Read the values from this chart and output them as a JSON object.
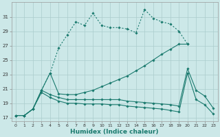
{
  "xlabel": "Humidex (Indice chaleur)",
  "x": [
    0,
    1,
    2,
    3,
    4,
    5,
    6,
    7,
    8,
    9,
    10,
    11,
    12,
    13,
    14,
    15,
    16,
    17,
    18,
    19,
    20,
    21,
    22,
    23
  ],
  "line1_x": [
    0,
    1,
    2,
    3,
    4,
    5,
    6,
    7,
    8,
    9,
    10,
    11,
    12,
    13,
    14,
    15,
    16,
    17,
    18,
    19,
    20
  ],
  "line1_y": [
    17.3,
    17.3,
    18.2,
    20.8,
    23.2,
    26.7,
    28.5,
    30.3,
    29.8,
    31.5,
    29.8,
    29.5,
    29.5,
    29.3,
    28.8,
    32.0,
    30.8,
    30.3,
    30.0,
    29.0,
    27.2
  ],
  "line2_x": [
    0,
    1,
    2,
    3,
    4,
    5,
    6,
    7,
    8,
    9,
    10,
    11,
    12,
    13,
    14,
    15,
    16,
    17,
    18,
    19,
    20
  ],
  "line2_y": [
    17.3,
    17.3,
    18.2,
    20.8,
    23.2,
    20.3,
    20.2,
    20.2,
    20.5,
    20.8,
    21.3,
    21.8,
    22.3,
    22.8,
    23.5,
    24.2,
    25.0,
    25.8,
    26.5,
    27.2,
    27.2
  ],
  "line3_x": [
    0,
    1,
    2,
    3,
    4,
    5,
    6,
    7,
    8,
    9,
    10,
    11,
    12,
    13,
    14,
    15,
    16,
    17,
    18,
    19,
    20,
    21,
    22,
    23
  ],
  "line3_y": [
    17.3,
    17.3,
    18.2,
    20.8,
    20.2,
    19.8,
    19.5,
    19.5,
    19.5,
    19.5,
    19.5,
    19.5,
    19.5,
    19.3,
    19.2,
    19.1,
    19.0,
    18.9,
    18.8,
    18.6,
    23.8,
    20.8,
    20.0,
    18.3
  ],
  "line4_x": [
    0,
    1,
    2,
    3,
    4,
    5,
    6,
    7,
    8,
    9,
    10,
    11,
    12,
    13,
    14,
    15,
    16,
    17,
    18,
    19,
    20,
    21,
    22,
    23
  ],
  "line4_y": [
    17.3,
    17.3,
    18.2,
    20.5,
    19.8,
    19.3,
    19.0,
    19.0,
    18.9,
    18.9,
    18.9,
    18.8,
    18.8,
    18.6,
    18.5,
    18.4,
    18.3,
    18.2,
    18.0,
    17.8,
    23.2,
    19.5,
    18.8,
    17.5
  ],
  "color": "#1a7a6e",
  "bg_color": "#cce8e8",
  "grid_color": "#aacccc",
  "ylim": [
    16.5,
    33.0
  ],
  "xlim": [
    -0.5,
    23.5
  ],
  "yticks": [
    17,
    19,
    21,
    23,
    25,
    27,
    29,
    31
  ]
}
